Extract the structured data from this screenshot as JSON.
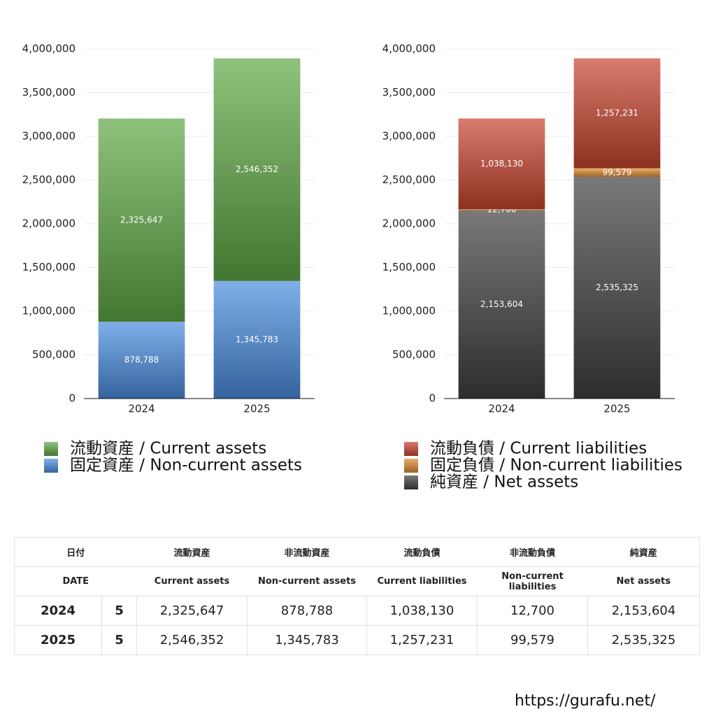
{
  "chart_data": [
    {
      "type": "bar",
      "stacked": true,
      "categories": [
        "2024",
        "2025"
      ],
      "series": [
        {
          "name": "固定資産 / Non-current assets",
          "color": "#4a8ee0",
          "values": [
            878788,
            1345783
          ],
          "value_labels": [
            "878,788",
            "1,345,783"
          ]
        },
        {
          "name": "流動資産 / Current assets",
          "color": "#5fa845",
          "values": [
            2325647,
            2546352
          ],
          "value_labels": [
            "2,325,647",
            "2,546,352"
          ]
        }
      ],
      "ylim": [
        0,
        4000000
      ],
      "yticks": [
        0,
        {
          "value": 500000,
          "label": "500,000"
        },
        {
          "value": 1000000,
          "label": "1,000,000"
        },
        {
          "value": 1500000,
          "label": "1,500,000"
        },
        {
          "value": 2000000,
          "label": "2,000,000"
        },
        {
          "value": 2500000,
          "label": "2,500,000"
        },
        {
          "value": 3000000,
          "label": "3,000,000"
        },
        {
          "value": 3500000,
          "label": "3,500,000"
        },
        {
          "value": 4000000,
          "label": "4,000,000"
        }
      ],
      "grid": true
    },
    {
      "type": "bar",
      "stacked": true,
      "categories": [
        "2024",
        "2025"
      ],
      "series": [
        {
          "name": "純資産 / Net assets",
          "color": "#404040",
          "values": [
            2153604,
            2535325
          ],
          "value_labels": [
            "2,153,604",
            "2,535,325"
          ]
        },
        {
          "name": "固定負債 / Non-current liabilities",
          "color": "#e08a30",
          "values": [
            12700,
            99579
          ],
          "value_labels": [
            "12,700",
            "99,579"
          ]
        },
        {
          "name": "流動負債 / Current liabilities",
          "color": "#c8442e",
          "values": [
            1038130,
            1257231
          ],
          "value_labels": [
            "1,038,130",
            "1,257,231"
          ]
        }
      ],
      "ylim": [
        0,
        4000000
      ],
      "yticks": [
        0,
        {
          "value": 500000,
          "label": "500,000"
        },
        {
          "value": 1000000,
          "label": "1,000,000"
        },
        {
          "value": 1500000,
          "label": "1,500,000"
        },
        {
          "value": 2000000,
          "label": "2,000,000"
        },
        {
          "value": 2500000,
          "label": "2,500,000"
        },
        {
          "value": 3000000,
          "label": "3,000,000"
        },
        {
          "value": 3500000,
          "label": "3,500,000"
        },
        {
          "value": 4000000,
          "label": "4,000,000"
        }
      ],
      "grid": true
    }
  ],
  "table": {
    "header": [
      [
        "日付",
        "流動資産",
        "非流動資産",
        "流動負債",
        "非流動負債",
        "純資産"
      ],
      [
        "DATE",
        "Current assets",
        "Non-current assets",
        "Current liabilities",
        "Non-current liabilities",
        "Net assets"
      ]
    ],
    "rows": [
      [
        "2024",
        "5",
        "2,325,647",
        "878,788",
        "1,038,130",
        "12,700",
        "2,153,604"
      ],
      [
        "2025",
        "5",
        "2,546,352",
        "1,345,783",
        "1,257,231",
        "99,579",
        "2,535,325"
      ]
    ]
  },
  "footer": "https://gurafu.net/"
}
